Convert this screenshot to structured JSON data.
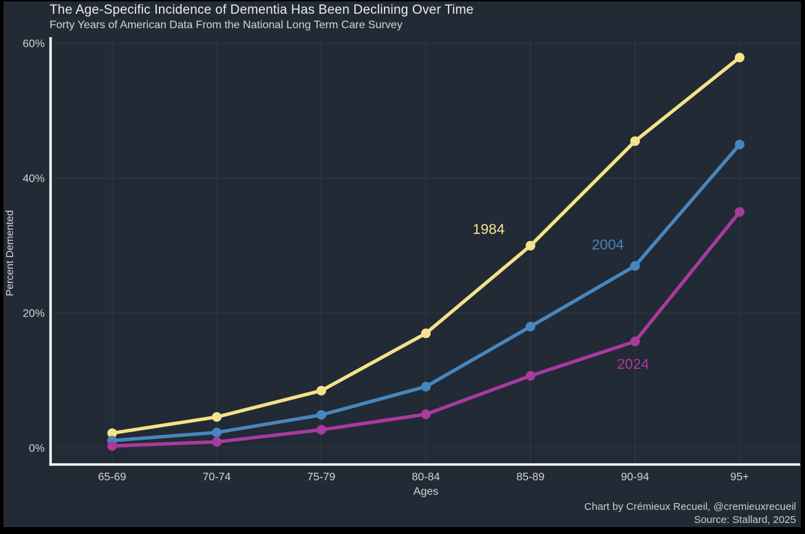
{
  "header": {
    "title": "The Age-Specific Incidence of Dementia Has Been Declining Over Time",
    "subtitle": "Forty Years of American Data From the National Long Term Care Survey"
  },
  "caption": {
    "line1": "Chart by Crémieux Recueil, @cremieuxrecueil",
    "line2": "Source: Stallard, 2025"
  },
  "colors": {
    "background": "#222A35",
    "frame": "#000000",
    "grid": "#2F3945",
    "axis": "#FFFFFF",
    "text_primary": "#E9EBEE",
    "text_secondary": "#D2D5D9",
    "caption_text": "#C9CCD0"
  },
  "chart_data": {
    "type": "line",
    "title": "The Age-Specific Incidence of Dementia Has Been Declining Over Time",
    "subtitle": "Forty Years of American Data From the National Long Term Care Survey",
    "categories": [
      "65-69",
      "70-74",
      "75-79",
      "80-84",
      "85-89",
      "90-94",
      "95+"
    ],
    "xlabel": "Ages",
    "ylabel": "Percent Demented",
    "ylim": [
      0,
      60
    ],
    "yticks": [
      0,
      20,
      40,
      60
    ],
    "ytick_labels": [
      "0%",
      "20%",
      "40%",
      "60%"
    ],
    "grid": true,
    "legend_position": "inline-labels",
    "series": [
      {
        "name": "1984",
        "color": "#F5E28A",
        "values": [
          2.2,
          4.6,
          8.5,
          17.0,
          30.0,
          45.5,
          57.9
        ],
        "label_pos": {
          "x": 3.6,
          "y": 32.5
        }
      },
      {
        "name": "2004",
        "color": "#4886BD",
        "values": [
          1.1,
          2.3,
          4.9,
          9.1,
          18.0,
          27.0,
          45.0
        ],
        "label_pos": {
          "x": 4.74,
          "y": 30.2
        }
      },
      {
        "name": "2024",
        "color": "#A93A9E",
        "values": [
          0.3,
          0.9,
          2.7,
          5.0,
          10.7,
          15.8,
          35.0
        ],
        "label_pos": {
          "x": 4.98,
          "y": 12.5
        }
      }
    ]
  }
}
